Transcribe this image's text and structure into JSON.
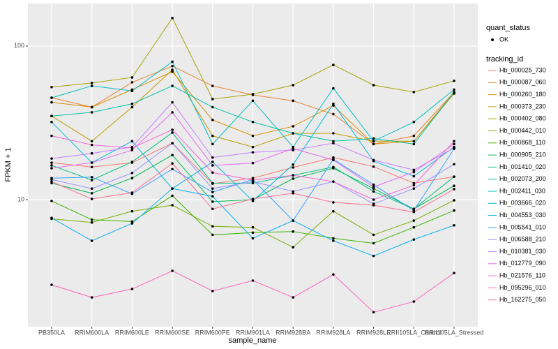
{
  "chart_data": {
    "type": "line",
    "x_label": "sample_name",
    "y_label": "FPKM + 1",
    "log_y": true,
    "grid": true,
    "categories": [
      "PB350LA",
      "RRIM600LA",
      "RRIM600LE",
      "RRIM600SE",
      "RRIM600PE",
      "RRIM901LA",
      "RRIM928BA",
      "RRIM928LA",
      "RRIM928LE",
      "RRII105LA_Control",
      "RRII105LA_Stressed"
    ],
    "ylim": [
      1.49,
      189
    ],
    "yticks": [
      10,
      100
    ],
    "point_legend_title": "quant_status",
    "point_legend_label": "OK",
    "legend_title": "tracking_id",
    "series": [
      {
        "name": "Hb_000025_730",
        "color": "#F8766D",
        "values": [
          17.4,
          16.3,
          17.4,
          23.3,
          12.7,
          13.8,
          16.2,
          18.8,
          16.4,
          12.8,
          14.1
        ]
      },
      {
        "name": "Hb_000087_060",
        "color": "#EA8331",
        "values": [
          46,
          40,
          58,
          74,
          55,
          48,
          44,
          36,
          23,
          26,
          50
        ]
      },
      {
        "name": "Hb_000260_180",
        "color": "#D89000",
        "values": [
          43,
          40,
          52,
          68,
          33,
          26,
          30,
          41,
          23,
          24,
          50
        ]
      },
      {
        "name": "Hb_000373_230",
        "color": "#C09B00",
        "values": [
          35,
          24,
          40,
          70,
          26,
          22,
          27,
          27,
          24,
          24,
          49
        ]
      },
      {
        "name": "Hb_000402_080",
        "color": "#A3A500",
        "values": [
          54,
          57.4,
          62.4,
          152,
          45.1,
          48.6,
          55.6,
          75.3,
          55.6,
          50.1,
          59.3
        ]
      },
      {
        "name": "Hb_000442_010",
        "color": "#7CAE00",
        "values": [
          7.5,
          7.1,
          8.4,
          9.2,
          6.7,
          6.6,
          4.9,
          8.4,
          5.9,
          7.3,
          9.9
        ]
      },
      {
        "name": "Hb_000868_110",
        "color": "#39B600",
        "values": [
          9.8,
          7.4,
          7.2,
          10.6,
          5.9,
          6.1,
          6.2,
          5.6,
          5.2,
          6.6,
          8.5
        ]
      },
      {
        "name": "Hb_000905_210",
        "color": "#00BB4E",
        "values": [
          12.8,
          11,
          13.8,
          19.5,
          9.7,
          10,
          13.7,
          16,
          11.8,
          8.7,
          12.3
        ]
      },
      {
        "name": "Hb_001410_020",
        "color": "#00BF7D",
        "values": [
          16.7,
          13.4,
          17.6,
          27.3,
          12.8,
          12.8,
          14.4,
          16.3,
          11.3,
          8.7,
          14.1
        ]
      },
      {
        "name": "Hb_002073_200",
        "color": "#00C1A3",
        "values": [
          35,
          37,
          42,
          55,
          40,
          32,
          27,
          24,
          25,
          23,
          50
        ]
      },
      {
        "name": "Hb_002411_030",
        "color": "#00BFC4",
        "values": [
          46,
          55,
          51,
          79,
          23,
          44,
          22,
          53,
          24,
          32,
          52
        ]
      },
      {
        "name": "Hb_003666_020",
        "color": "#00BAE0",
        "values": [
          32,
          17.4,
          24,
          11.8,
          17.6,
          9.8,
          16.9,
          42,
          17.8,
          14.2,
          22
        ]
      },
      {
        "name": "Hb_004553_030",
        "color": "#00B0F6",
        "values": [
          7.6,
          5.4,
          7,
          11.8,
          10.5,
          5.6,
          7.3,
          5.4,
          4.3,
          5.5,
          6.8
        ]
      },
      {
        "name": "Hb_005541_010",
        "color": "#35A2FF",
        "values": [
          13.8,
          14,
          10.9,
          15.8,
          11.2,
          13.5,
          7.3,
          18.3,
          12.5,
          8.5,
          21.4
        ]
      },
      {
        "name": "Hb_006588_210",
        "color": "#9590FF",
        "values": [
          13.5,
          11.8,
          14.9,
          23.3,
          11.8,
          13.1,
          11.3,
          13.1,
          9.4,
          11.8,
          17
        ]
      },
      {
        "name": "Hb_010381_030",
        "color": "#C77CFF",
        "values": [
          18.5,
          20,
          22,
          43,
          18.8,
          20.3,
          21,
          23.3,
          18.1,
          15.6,
          21.7
        ]
      },
      {
        "name": "Hb_012779_090",
        "color": "#E76BF3",
        "values": [
          16,
          17.4,
          21,
          37,
          16.7,
          17.3,
          21.5,
          18.1,
          12.1,
          15.1,
          23
        ]
      },
      {
        "name": "Hb_021576_110",
        "color": "#FA62DB",
        "values": [
          26,
          22.7,
          21.7,
          28.5,
          15,
          13.4,
          14.4,
          13.1,
          10,
          12.4,
          24
        ]
      },
      {
        "name": "Hb_095296_010",
        "color": "#FF62BC",
        "values": [
          2.79,
          2.31,
          2.62,
          3.44,
          2.54,
          2.97,
          2.31,
          3.26,
          1.85,
          2.17,
          3.33
        ]
      },
      {
        "name": "Hb_162275_050",
        "color": "#FF6C91",
        "values": [
          13.1,
          10.1,
          11.1,
          17.2,
          8.7,
          10.1,
          11,
          9.6,
          9.2,
          8.3,
          11.7
        ]
      }
    ]
  }
}
